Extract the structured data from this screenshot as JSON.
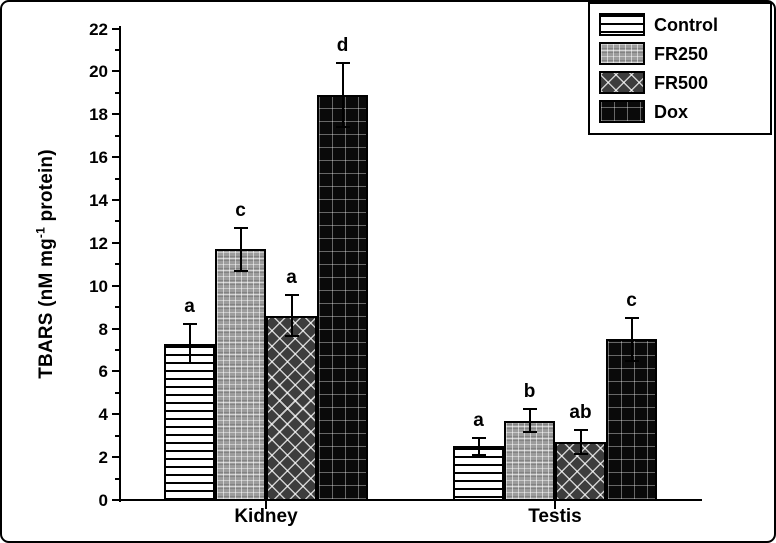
{
  "figure": {
    "background": "#ffffff",
    "border_color": "#000000",
    "text_color": "#000000"
  },
  "chart_data": {
    "type": "bar",
    "title": "",
    "xlabel": "",
    "ylabel": "TBARS (nM mg⁻¹ protein)",
    "ylabel_parts": {
      "prefix": "TBARS (nM mg",
      "superscript": "-1",
      "suffix": " protein)"
    },
    "categories": [
      "Kidney",
      "Testis"
    ],
    "series": [
      {
        "name": "Control",
        "pattern": "horizontal-lines",
        "values": [
          7.3,
          2.5
        ],
        "errors": [
          0.9,
          0.4
        ],
        "letters": [
          "a",
          "a"
        ]
      },
      {
        "name": "FR250",
        "pattern": "gray-grid",
        "values": [
          11.7,
          3.7
        ],
        "errors": [
          1.0,
          0.55
        ],
        "letters": [
          "c",
          "b"
        ]
      },
      {
        "name": "FR500",
        "pattern": "dark-crosshatch",
        "values": [
          8.6,
          2.7
        ],
        "errors": [
          0.95,
          0.55
        ],
        "letters": [
          "a",
          "ab"
        ]
      },
      {
        "name": "Dox",
        "pattern": "black-grid",
        "values": [
          18.9,
          7.5
        ],
        "errors": [
          1.5,
          1.0
        ],
        "letters": [
          "d",
          "c"
        ]
      }
    ],
    "ylim": [
      0,
      22
    ],
    "yticks": [
      0,
      2,
      4,
      6,
      8,
      10,
      12,
      14,
      16,
      18,
      20,
      22
    ],
    "minor_ytick_step": 1,
    "grid": false,
    "error_bars": true,
    "legend_position": "top-right"
  }
}
